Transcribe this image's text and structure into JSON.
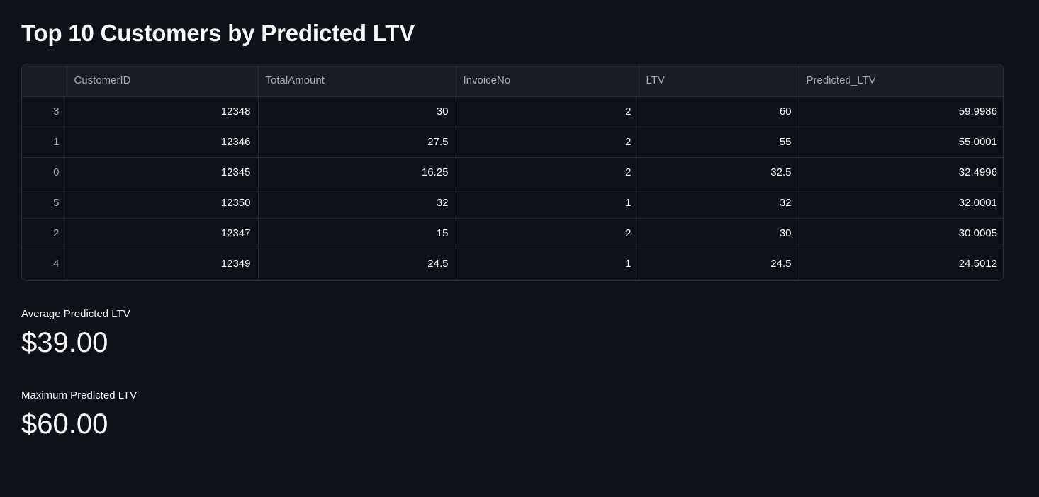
{
  "title": "Top 10 Customers by Predicted LTV",
  "table": {
    "columns": [
      "",
      "CustomerID",
      "TotalAmount",
      "InvoiceNo",
      "LTV",
      "Predicted_LTV"
    ],
    "rows": [
      [
        "3",
        "12348",
        "30",
        "2",
        "60",
        "59.9986"
      ],
      [
        "1",
        "12346",
        "27.5",
        "2",
        "55",
        "55.0001"
      ],
      [
        "0",
        "12345",
        "16.25",
        "2",
        "32.5",
        "32.4996"
      ],
      [
        "5",
        "12350",
        "32",
        "1",
        "32",
        "32.0001"
      ],
      [
        "2",
        "12347",
        "15",
        "2",
        "30",
        "30.0005"
      ],
      [
        "4",
        "12349",
        "24.5",
        "1",
        "24.5",
        "24.5012"
      ]
    ]
  },
  "metrics": [
    {
      "label": "Average Predicted LTV",
      "value": "$39.00"
    },
    {
      "label": "Maximum Predicted LTV",
      "value": "$60.00"
    }
  ]
}
